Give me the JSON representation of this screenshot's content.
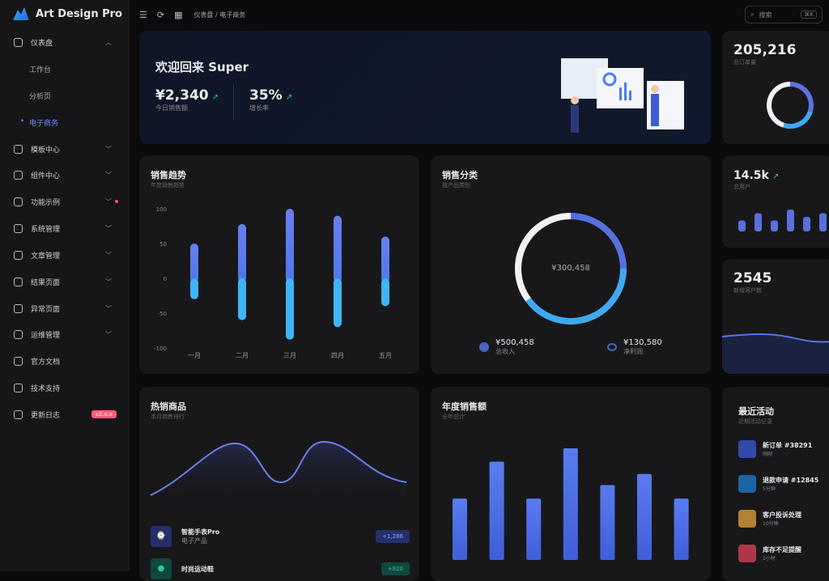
{
  "app": {
    "name": "Art Design Pro"
  },
  "sidebar": {
    "items": [
      {
        "label": "仪表盘",
        "chevron": "up"
      },
      {
        "label": "模板中心",
        "chevron": "down"
      },
      {
        "label": "组件中心",
        "chevron": "down"
      },
      {
        "label": "功能示例",
        "chevron": "down",
        "dot": true
      },
      {
        "label": "系统管理",
        "chevron": "down"
      },
      {
        "label": "文章管理",
        "chevron": "down"
      },
      {
        "label": "结果页面",
        "chevron": "down"
      },
      {
        "label": "异常页面",
        "chevron": "down"
      },
      {
        "label": "运维管理",
        "chevron": "down"
      },
      {
        "label": "官方文档"
      },
      {
        "label": "技术支持"
      },
      {
        "label": "更新日志",
        "badge": "v2.x.x"
      }
    ],
    "sub_items": [
      {
        "label": "工作台"
      },
      {
        "label": "分析页"
      },
      {
        "label": "电子商务",
        "active": true
      }
    ]
  },
  "header": {
    "breadcrumb": [
      "仪表盘",
      "电子商务"
    ],
    "search_placeholder": "搜索",
    "shortcut": "⌘K"
  },
  "welcome": {
    "title": "欢迎回来 Super",
    "stats": [
      {
        "value": "¥2,340",
        "label": "今日销售额"
      },
      {
        "value": "35%",
        "label": "增长率"
      }
    ]
  },
  "orders": {
    "value": "205,216",
    "label": "总订单量",
    "ring": [
      0.3,
      0.25,
      0.45
    ]
  },
  "users": {
    "value": "14.5k",
    "label": "总用户",
    "bars": [
      3,
      5,
      3,
      6,
      4,
      5,
      4
    ]
  },
  "customers": {
    "value": "2545",
    "label": "新增客户数"
  },
  "sales_trend": {
    "title": "销售趋势",
    "subtitle": "年度销售趋势",
    "chart_data": {
      "type": "bar",
      "categories": [
        "一月",
        "二月",
        "三月",
        "四月",
        "五月"
      ],
      "series": [
        {
          "values": [
            50,
            78,
            100,
            90,
            60
          ]
        },
        {
          "values": [
            -30,
            -60,
            -88,
            -70,
            -40
          ]
        }
      ],
      "yticks": [
        100,
        50,
        0,
        -50,
        -100
      ],
      "ylim": [
        -100,
        100
      ]
    }
  },
  "sales_category": {
    "title": "销售分类",
    "subtitle": "按产品类别",
    "center": "¥300,458",
    "segments": [
      0.25,
      0.4,
      0.35
    ],
    "legend": [
      {
        "value": "¥500,458",
        "label": "总收入"
      },
      {
        "value": "¥130,580",
        "label": "净利润"
      }
    ]
  },
  "hot_products": {
    "title": "热销商品",
    "subtitle": "本月销售排行",
    "items": [
      {
        "name": "智能手表Pro",
        "category": "电子产品",
        "badge": "+1,286"
      },
      {
        "name": "时尚运动鞋",
        "badge": "+920"
      }
    ]
  },
  "annual_sales": {
    "title": "年度销售额",
    "subtitle": "全年总计",
    "values": [
      55,
      88,
      55,
      100,
      67,
      77,
      55
    ]
  },
  "activity": {
    "title": "最近活动",
    "subtitle": "近期活动记录",
    "items": [
      {
        "title": "新订单 #38291",
        "sub": "刚刚",
        "color": "#3b5bdb"
      },
      {
        "title": "退款申请 #12845",
        "sub": "5分钟",
        "color": "#1c7ed6"
      },
      {
        "title": "客户投诉处理",
        "sub": "10分钟",
        "color": "#e8a33d"
      },
      {
        "title": "库存不足提醒",
        "sub": "1小时",
        "color": "#e0435b"
      }
    ]
  }
}
